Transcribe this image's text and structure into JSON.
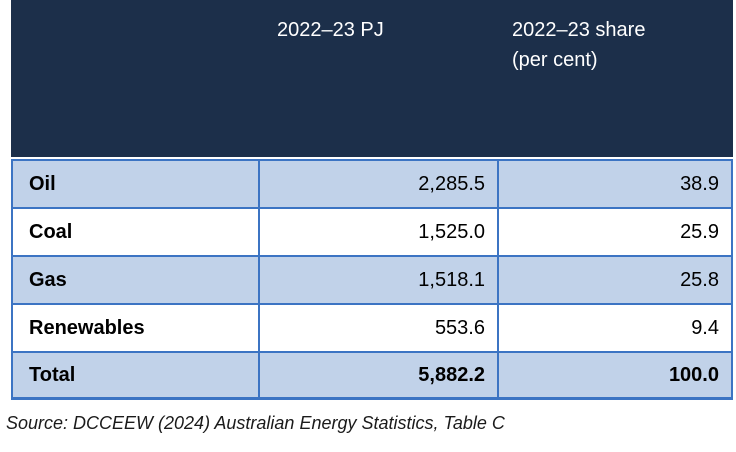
{
  "colors": {
    "header_bg": "#1C2F4A",
    "row_highlight_bg": "#C1D2E9",
    "border": "#3C74C3",
    "header_text": "#FFFFFF",
    "body_text": "#000000"
  },
  "table": {
    "header": {
      "col1": "",
      "col2": "2022–23 PJ",
      "col3": "2022–23 share (per cent)"
    },
    "rows": [
      {
        "label": "Oil",
        "pj": "2,285.5",
        "share": "38.9"
      },
      {
        "label": "Coal",
        "pj": "1,525.0",
        "share": "25.9"
      },
      {
        "label": "Gas",
        "pj": "1,518.1",
        "share": "25.8"
      },
      {
        "label": "Renewables",
        "pj": "553.6",
        "share": "9.4"
      },
      {
        "label": "Total",
        "pj": "5,882.2",
        "share": "100.0"
      }
    ]
  },
  "source_note": "Source: DCCEEW (2024) Australian Energy Statistics, Table C",
  "chart_data": {
    "type": "table",
    "columns": [
      "",
      "2022–23 PJ",
      "2022–23 share (per cent)"
    ],
    "rows": [
      [
        "Oil",
        2285.5,
        38.9
      ],
      [
        "Coal",
        1525.0,
        25.9
      ],
      [
        "Gas",
        1518.1,
        25.8
      ],
      [
        "Renewables",
        553.6,
        9.4
      ],
      [
        "Total",
        5882.2,
        100.0
      ]
    ],
    "title": "",
    "source": "Source: DCCEEW (2024) Australian Energy Statistics, Table C"
  }
}
